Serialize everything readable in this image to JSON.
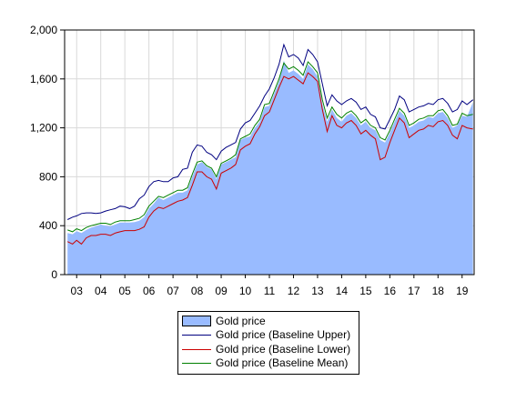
{
  "chart_data": {
    "type": "area",
    "title": "",
    "xlabel": "",
    "ylabel": "",
    "ylim": [
      0,
      2000
    ],
    "y_ticks": [
      0,
      400,
      800,
      1200,
      1600,
      2000
    ],
    "y_tick_labels": [
      "0",
      "400",
      "800",
      "1,200",
      "1,600",
      "2,000"
    ],
    "x_range": [
      2002.5,
      2019.5
    ],
    "x_ticks": [
      2003,
      2004,
      2005,
      2006,
      2007,
      2008,
      2009,
      2010,
      2011,
      2012,
      2013,
      2014,
      2015,
      2016,
      2017,
      2018,
      2019
    ],
    "x_tick_labels": [
      "03",
      "04",
      "05",
      "06",
      "07",
      "08",
      "09",
      "10",
      "11",
      "12",
      "13",
      "14",
      "15",
      "16",
      "17",
      "18",
      "19"
    ],
    "grid": true,
    "legend_position": "bottom-center",
    "x": [
      2002.62,
      2002.83,
      2003.0,
      2003.2,
      2003.4,
      2003.6,
      2003.8,
      2004.0,
      2004.2,
      2004.4,
      2004.6,
      2004.8,
      2005.0,
      2005.2,
      2005.4,
      2005.6,
      2005.8,
      2006.0,
      2006.2,
      2006.4,
      2006.6,
      2006.8,
      2007.0,
      2007.2,
      2007.4,
      2007.6,
      2007.8,
      2008.0,
      2008.2,
      2008.4,
      2008.6,
      2008.8,
      2009.0,
      2009.2,
      2009.4,
      2009.6,
      2009.8,
      2010.0,
      2010.2,
      2010.4,
      2010.6,
      2010.8,
      2011.0,
      2011.2,
      2011.4,
      2011.6,
      2011.8,
      2012.0,
      2012.2,
      2012.4,
      2012.6,
      2012.8,
      2013.0,
      2013.2,
      2013.4,
      2013.6,
      2013.8,
      2014.0,
      2014.2,
      2014.4,
      2014.6,
      2014.8,
      2015.0,
      2015.2,
      2015.4,
      2015.6,
      2015.8,
      2016.0,
      2016.2,
      2016.4,
      2016.6,
      2016.8,
      2017.0,
      2017.2,
      2017.4,
      2017.6,
      2017.8,
      2018.0,
      2018.2,
      2018.4,
      2018.6,
      2018.8,
      2019.0,
      2019.2,
      2019.45
    ],
    "series": [
      {
        "name": "Gold price",
        "type": "area",
        "color": "#99bbff",
        "values": [
          340,
          330,
          355,
          340,
          365,
          385,
          395,
          410,
          400,
          395,
          410,
          425,
          425,
          425,
          430,
          440,
          470,
          540,
          580,
          630,
          610,
          630,
          650,
          670,
          670,
          690,
          800,
          900,
          920,
          880,
          860,
          780,
          900,
          920,
          940,
          960,
          1100,
          1120,
          1130,
          1200,
          1250,
          1370,
          1380,
          1480,
          1580,
          1750,
          1650,
          1670,
          1640,
          1600,
          1720,
          1680,
          1620,
          1400,
          1250,
          1350,
          1280,
          1250,
          1300,
          1320,
          1280,
          1220,
          1250,
          1200,
          1180,
          1100,
          1080,
          1160,
          1250,
          1340,
          1300,
          1200,
          1220,
          1250,
          1260,
          1290,
          1280,
          1320,
          1330,
          1280,
          1200,
          1220,
          1300,
          1290,
          1410
        ]
      },
      {
        "name": "Gold price (Baseline Upper)",
        "type": "line",
        "color": "#000080",
        "values": [
          450,
          470,
          480,
          500,
          505,
          505,
          500,
          505,
          520,
          530,
          540,
          560,
          555,
          540,
          560,
          620,
          650,
          720,
          760,
          770,
          760,
          760,
          790,
          800,
          860,
          870,
          1000,
          1060,
          1050,
          1000,
          980,
          940,
          1010,
          1040,
          1060,
          1080,
          1190,
          1240,
          1260,
          1320,
          1380,
          1460,
          1520,
          1610,
          1720,
          1880,
          1780,
          1800,
          1770,
          1710,
          1840,
          1800,
          1740,
          1560,
          1380,
          1470,
          1420,
          1390,
          1420,
          1440,
          1410,
          1350,
          1370,
          1310,
          1290,
          1200,
          1190,
          1270,
          1350,
          1460,
          1430,
          1330,
          1350,
          1370,
          1380,
          1400,
          1390,
          1430,
          1440,
          1400,
          1330,
          1350,
          1420,
          1390,
          1430
        ]
      },
      {
        "name": "Gold price (Baseline Lower)",
        "type": "line",
        "color": "#cc0000",
        "values": [
          270,
          250,
          280,
          250,
          300,
          320,
          320,
          330,
          330,
          320,
          340,
          350,
          360,
          360,
          360,
          370,
          390,
          470,
          520,
          550,
          540,
          560,
          580,
          600,
          610,
          630,
          730,
          840,
          840,
          800,
          780,
          700,
          830,
          850,
          870,
          900,
          1020,
          1050,
          1070,
          1150,
          1210,
          1300,
          1330,
          1430,
          1530,
          1620,
          1600,
          1620,
          1590,
          1560,
          1650,
          1620,
          1580,
          1350,
          1170,
          1300,
          1220,
          1200,
          1240,
          1260,
          1220,
          1150,
          1180,
          1140,
          1110,
          940,
          960,
          1080,
          1180,
          1280,
          1240,
          1120,
          1150,
          1180,
          1190,
          1220,
          1210,
          1250,
          1260,
          1220,
          1140,
          1110,
          1220,
          1200,
          1190
        ]
      },
      {
        "name": "Gold price (Baseline Mean)",
        "type": "line",
        "color": "#008000",
        "values": [
          365,
          350,
          375,
          360,
          385,
          400,
          410,
          420,
          420,
          410,
          430,
          440,
          440,
          440,
          450,
          460,
          490,
          560,
          600,
          640,
          630,
          650,
          670,
          690,
          690,
          710,
          820,
          920,
          930,
          890,
          870,
          800,
          910,
          930,
          950,
          980,
          1110,
          1130,
          1150,
          1220,
          1270,
          1390,
          1400,
          1500,
          1600,
          1730,
          1680,
          1700,
          1670,
          1630,
          1740,
          1700,
          1650,
          1430,
          1280,
          1370,
          1310,
          1280,
          1320,
          1340,
          1300,
          1240,
          1270,
          1220,
          1200,
          1120,
          1100,
          1180,
          1270,
          1360,
          1320,
          1220,
          1240,
          1270,
          1280,
          1300,
          1300,
          1340,
          1350,
          1300,
          1220,
          1230,
          1320,
          1300,
          1310
        ]
      }
    ]
  },
  "legend": {
    "items": [
      {
        "label": "Gold price"
      },
      {
        "label": "Gold price (Baseline Upper)"
      },
      {
        "label": "Gold price (Baseline Lower)"
      },
      {
        "label": "Gold price (Baseline Mean)"
      }
    ]
  }
}
